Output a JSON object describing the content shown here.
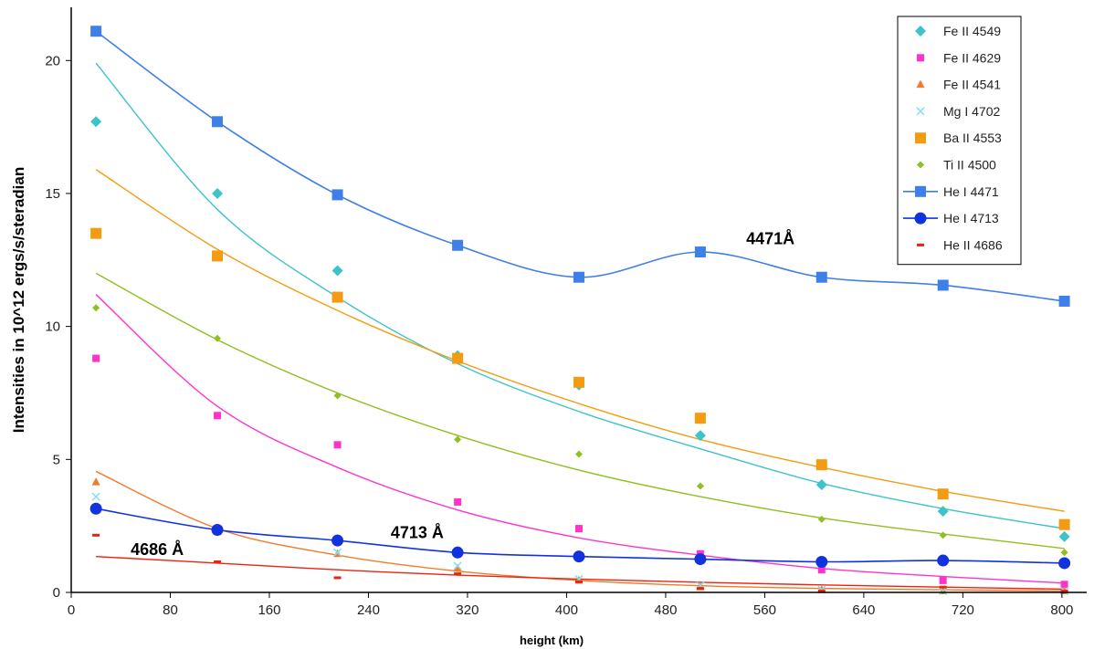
{
  "chart_data": {
    "type": "scatter",
    "title": "",
    "xlabel": "height (km)",
    "ylabel": "Intensities in 10^12 ergs/s/steradian",
    "xlim": [
      0,
      820
    ],
    "ylim": [
      0,
      22
    ],
    "x_ticks": [
      "0",
      "80",
      "160",
      "240",
      "320",
      "400",
      "480",
      "560",
      "640",
      "720",
      "800"
    ],
    "y_ticks": [
      "0",
      "5",
      "10",
      "15",
      "20"
    ],
    "grid": false,
    "legend_position": "top-right",
    "x": [
      20,
      118,
      215,
      312,
      410,
      508,
      606,
      704,
      802
    ],
    "series": [
      {
        "name": "Fe II 4549",
        "color": "#3cc4c8",
        "marker": "diamond",
        "values": [
          17.7,
          15.0,
          12.1,
          8.9,
          7.8,
          5.9,
          4.05,
          3.05,
          2.1
        ],
        "fit": [
          19.9,
          14.4,
          11.1,
          8.6,
          6.8,
          5.4,
          4.1,
          3.15,
          2.4
        ]
      },
      {
        "name": "Fe II 4629",
        "color": "#ff33cc",
        "marker": "square-small",
        "values": [
          8.8,
          6.65,
          5.55,
          3.4,
          2.4,
          1.45,
          0.85,
          0.45,
          0.3
        ],
        "fit": [
          11.2,
          7.0,
          4.7,
          3.1,
          2.05,
          1.4,
          0.9,
          0.6,
          0.35
        ]
      },
      {
        "name": "Fe II 4541",
        "color": "#f07b2a",
        "marker": "triangle",
        "values": [
          4.15,
          2.4,
          1.45,
          0.9,
          0.45,
          0.2,
          0.1,
          0.05,
          0.05
        ],
        "fit": [
          4.55,
          2.4,
          1.4,
          0.8,
          0.45,
          0.25,
          0.15,
          0.1,
          0.05
        ]
      },
      {
        "name": "Mg I 4702",
        "color": "#7fe0f0",
        "marker": "x",
        "values": [
          3.6,
          2.3,
          1.5,
          1.0,
          0.5,
          0.25,
          0.1,
          0.05,
          0.05
        ]
      },
      {
        "name": "Ba II 4553",
        "color": "#f39c12",
        "marker": "square",
        "values": [
          13.5,
          12.65,
          11.1,
          8.8,
          7.9,
          6.55,
          4.8,
          3.7,
          2.55
        ],
        "fit": [
          15.9,
          12.9,
          10.6,
          8.7,
          7.1,
          5.75,
          4.7,
          3.8,
          3.05
        ]
      },
      {
        "name": "Ti II 4500",
        "color": "#8fbf20",
        "marker": "diamond-small",
        "values": [
          10.7,
          9.55,
          7.4,
          5.75,
          5.2,
          4.0,
          2.75,
          2.15,
          1.5
        ],
        "fit": [
          12.0,
          9.5,
          7.5,
          5.9,
          4.6,
          3.6,
          2.8,
          2.2,
          1.65
        ]
      },
      {
        "name": "He I 4471",
        "color": "#3f7fe8",
        "marker": "square",
        "line": true,
        "values": [
          21.1,
          17.7,
          14.95,
          13.05,
          11.85,
          12.8,
          11.85,
          11.55,
          10.95
        ]
      },
      {
        "name": "He I 4713",
        "color": "#1133dd",
        "marker": "circle",
        "line": true,
        "values": [
          3.15,
          2.35,
          1.95,
          1.5,
          1.35,
          1.25,
          1.15,
          1.2,
          1.1
        ]
      },
      {
        "name": "He II 4686",
        "color": "#ee2211",
        "marker": "dash",
        "values": [
          2.15,
          1.15,
          0.55,
          0.7,
          0.4,
          0.15,
          0.05,
          0.2,
          0.05
        ],
        "fit": [
          1.35,
          1.1,
          0.85,
          0.65,
          0.5,
          0.38,
          0.28,
          0.2,
          0.12
        ]
      }
    ],
    "annotations": [
      {
        "text": "4471Å",
        "x": 545,
        "y": 13.1
      },
      {
        "text": "4713 Å",
        "x": 258,
        "y": 2.05
      },
      {
        "text": "4686 Å",
        "x": 48,
        "y": 1.4
      }
    ]
  }
}
